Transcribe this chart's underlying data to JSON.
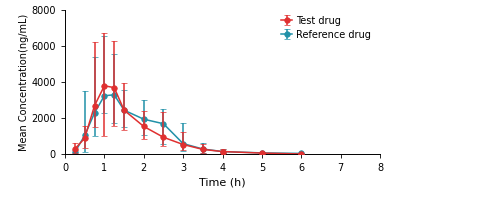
{
  "test_x": [
    0.25,
    0.5,
    0.75,
    1.0,
    1.25,
    1.5,
    2.0,
    2.5,
    3.0,
    3.5,
    4.0,
    5.0,
    6.0
  ],
  "test_y": [
    300,
    900,
    2700,
    3800,
    3700,
    2450,
    1550,
    950,
    550,
    280,
    160,
    75,
    25
  ],
  "test_yerr_low": [
    200,
    550,
    1200,
    2800,
    2100,
    1100,
    700,
    500,
    300,
    180,
    100,
    45,
    15
  ],
  "test_yerr_high": [
    320,
    650,
    3500,
    2900,
    2600,
    1500,
    850,
    1400,
    700,
    320,
    150,
    65,
    25
  ],
  "ref_x": [
    0.25,
    0.5,
    0.75,
    1.0,
    1.25,
    1.5,
    2.0,
    2.5,
    3.0,
    3.5,
    4.0,
    5.0,
    6.0
  ],
  "ref_y": [
    120,
    1050,
    2300,
    3250,
    3300,
    2450,
    1950,
    1700,
    600,
    300,
    160,
    85,
    55
  ],
  "ref_yerr_low": [
    100,
    900,
    1300,
    950,
    1550,
    950,
    900,
    1100,
    430,
    200,
    110,
    65,
    40
  ],
  "ref_yerr_high": [
    120,
    2450,
    3100,
    3300,
    2250,
    1100,
    1050,
    800,
    1150,
    330,
    140,
    65,
    45
  ],
  "test_color": "#e03030",
  "ref_color": "#2191a8",
  "xlabel": "Time (h)",
  "ylabel": "Mean Concentration(ng/mL)",
  "xlim": [
    0,
    8
  ],
  "ylim": [
    0,
    8000
  ],
  "yticks": [
    0,
    2000,
    4000,
    6000,
    8000
  ],
  "xticks": [
    0,
    1,
    2,
    3,
    4,
    5,
    6,
    7,
    8
  ],
  "legend_test": "Test drug",
  "legend_ref": "Reference drug",
  "marker_size": 4,
  "capsize": 2.5,
  "linewidth": 1.1
}
